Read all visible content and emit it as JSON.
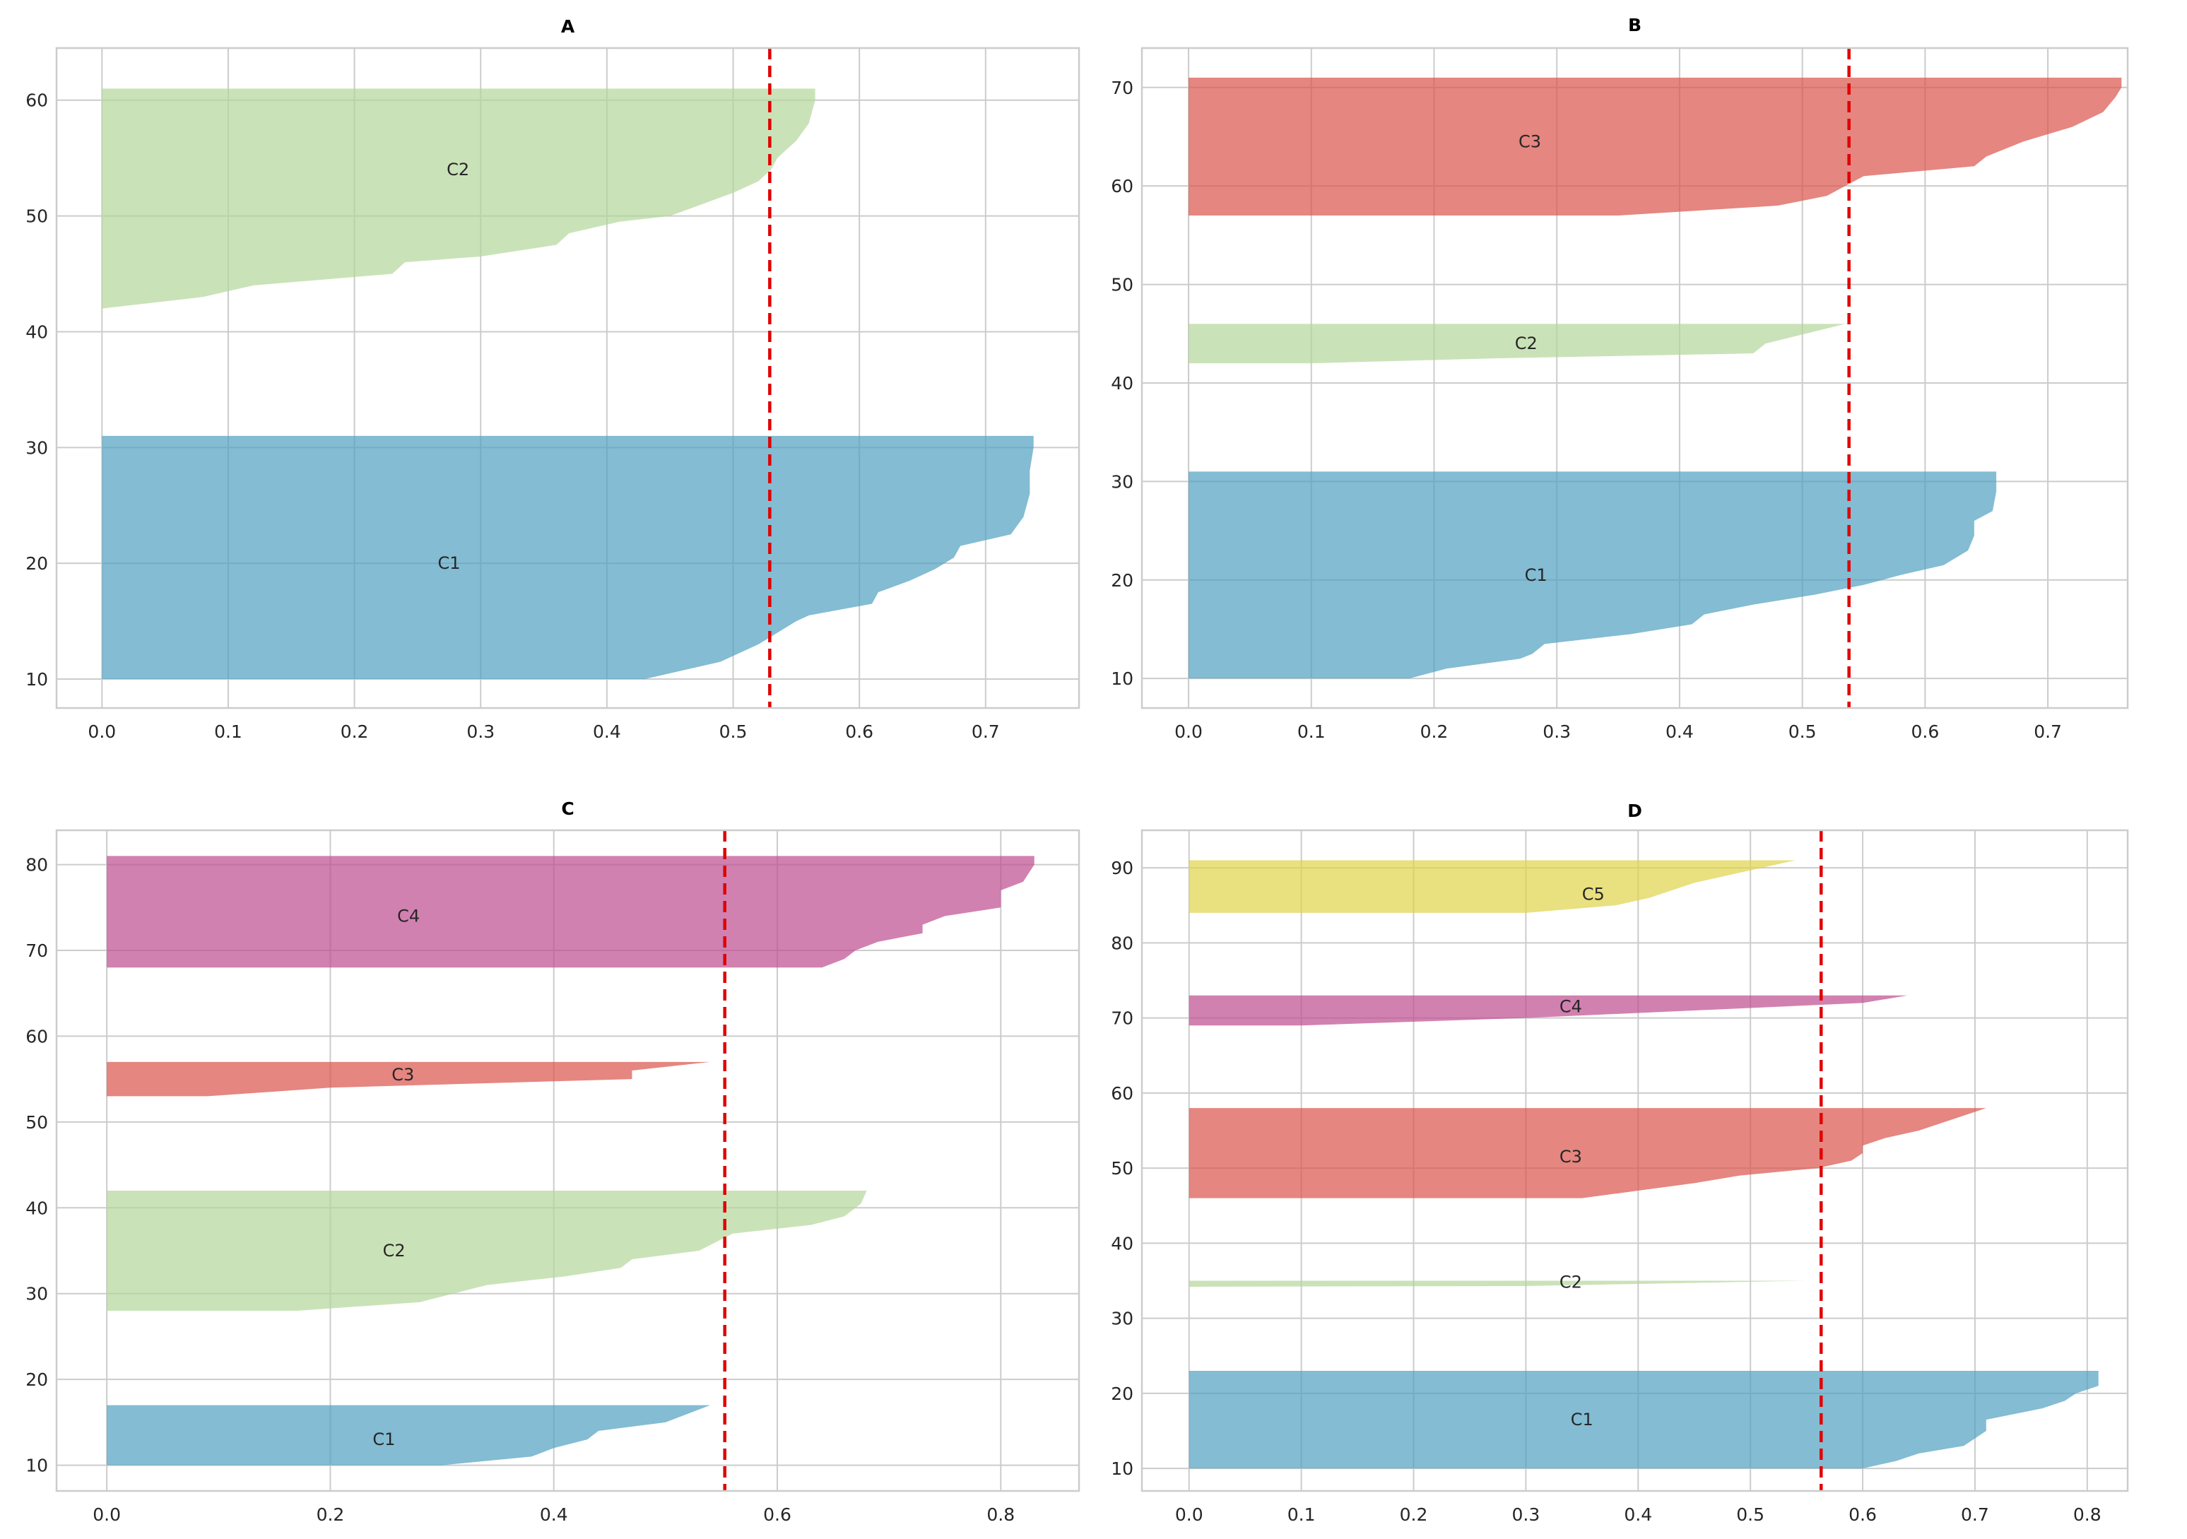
{
  "colors": {
    "C1": "#4e9fc1",
    "C2": "#b4d69a",
    "C3": "#da524a",
    "C4": "#bd4c8e",
    "C5": "#dfd34a",
    "average_line": "#e00000",
    "grid": "#cccccc"
  },
  "chart_data": [
    {
      "id": "A",
      "type": "area",
      "title": "A",
      "xlabel": "",
      "ylabel": "",
      "xlim": [
        -0.036,
        0.774
      ],
      "ylim": [
        7.5,
        64.5
      ],
      "xticks": [
        0.0,
        0.1,
        0.2,
        0.3,
        0.4,
        0.5,
        0.6,
        0.7
      ],
      "xtick_labels": [
        "0.0",
        "0.1",
        "0.2",
        "0.3",
        "0.4",
        "0.5",
        "0.6",
        "0.7"
      ],
      "yticks": [
        10,
        20,
        30,
        40,
        50,
        60
      ],
      "ytick_labels": [
        "10",
        "20",
        "30",
        "40",
        "50",
        "60"
      ],
      "grid": true,
      "average_silhouette": 0.529,
      "clusters": [
        {
          "name": "C1",
          "label": "C1",
          "label_pos": [
            0.275,
            20
          ],
          "profile": [
            [
              0.43,
              10
            ],
            [
              0.49,
              11.5
            ],
            [
              0.52,
              13
            ],
            [
              0.535,
              14
            ],
            [
              0.55,
              15
            ],
            [
              0.56,
              15.5
            ],
            [
              0.61,
              16.5
            ],
            [
              0.615,
              17.5
            ],
            [
              0.64,
              18.5
            ],
            [
              0.66,
              19.5
            ],
            [
              0.675,
              20.5
            ],
            [
              0.68,
              21.5
            ],
            [
              0.72,
              22.5
            ],
            [
              0.73,
              24
            ],
            [
              0.735,
              26
            ],
            [
              0.735,
              28
            ],
            [
              0.738,
              30
            ],
            [
              0.738,
              31
            ]
          ]
        },
        {
          "name": "C2",
          "label": "C2",
          "label_pos": [
            0.282,
            54
          ],
          "profile": [
            [
              0.0,
              42
            ],
            [
              0.08,
              43
            ],
            [
              0.12,
              44
            ],
            [
              0.23,
              45
            ],
            [
              0.24,
              46
            ],
            [
              0.3,
              46.5
            ],
            [
              0.36,
              47.5
            ],
            [
              0.37,
              48.5
            ],
            [
              0.41,
              49.5
            ],
            [
              0.45,
              50
            ],
            [
              0.475,
              51
            ],
            [
              0.5,
              52
            ],
            [
              0.52,
              53
            ],
            [
              0.53,
              54
            ],
            [
              0.535,
              55
            ],
            [
              0.55,
              56.5
            ],
            [
              0.56,
              58
            ],
            [
              0.565,
              60
            ],
            [
              0.565,
              61
            ]
          ]
        }
      ]
    },
    {
      "id": "B",
      "type": "area",
      "title": "B",
      "xlabel": "",
      "ylabel": "",
      "xlim": [
        -0.038,
        0.765
      ],
      "ylim": [
        7.0,
        74.0
      ],
      "xticks": [
        0.0,
        0.1,
        0.2,
        0.3,
        0.4,
        0.5,
        0.6,
        0.7
      ],
      "xtick_labels": [
        "0.0",
        "0.1",
        "0.2",
        "0.3",
        "0.4",
        "0.5",
        "0.6",
        "0.7"
      ],
      "yticks": [
        10,
        20,
        30,
        40,
        50,
        60,
        70
      ],
      "ytick_labels": [
        "10",
        "20",
        "30",
        "40",
        "50",
        "60",
        "70"
      ],
      "grid": true,
      "average_silhouette": 0.538,
      "clusters": [
        {
          "name": "C1",
          "label": "C1",
          "label_pos": [
            0.283,
            20.5
          ],
          "profile": [
            [
              0.18,
              10
            ],
            [
              0.21,
              11
            ],
            [
              0.27,
              12
            ],
            [
              0.28,
              12.5
            ],
            [
              0.29,
              13.5
            ],
            [
              0.36,
              14.5
            ],
            [
              0.41,
              15.5
            ],
            [
              0.42,
              16.5
            ],
            [
              0.46,
              17.5
            ],
            [
              0.51,
              18.5
            ],
            [
              0.55,
              19.5
            ],
            [
              0.58,
              20.5
            ],
            [
              0.615,
              21.5
            ],
            [
              0.635,
              23
            ],
            [
              0.64,
              24.5
            ],
            [
              0.64,
              26
            ],
            [
              0.655,
              27
            ],
            [
              0.658,
              29
            ],
            [
              0.658,
              31
            ]
          ]
        },
        {
          "name": "C2",
          "label": "C2",
          "label_pos": [
            0.275,
            44
          ],
          "profile": [
            [
              0.0,
              42
            ],
            [
              0.1,
              42
            ],
            [
              0.25,
              42.5
            ],
            [
              0.46,
              43
            ],
            [
              0.47,
              44
            ],
            [
              0.535,
              46
            ]
          ]
        },
        {
          "name": "C3",
          "label": "C3",
          "label_pos": [
            0.278,
            64.5
          ],
          "profile": [
            [
              0.0,
              57
            ],
            [
              0.35,
              57
            ],
            [
              0.48,
              58
            ],
            [
              0.52,
              59
            ],
            [
              0.535,
              60
            ],
            [
              0.55,
              61
            ],
            [
              0.64,
              62
            ],
            [
              0.65,
              63
            ],
            [
              0.68,
              64.5
            ],
            [
              0.72,
              66
            ],
            [
              0.745,
              67.5
            ],
            [
              0.755,
              69
            ],
            [
              0.76,
              70
            ],
            [
              0.76,
              71
            ]
          ]
        }
      ]
    },
    {
      "id": "C",
      "type": "area",
      "title": "C",
      "xlabel": "",
      "ylabel": "",
      "xlim": [
        -0.045,
        0.87
      ],
      "ylim": [
        7.0,
        84.0
      ],
      "xticks": [
        0.0,
        0.2,
        0.4,
        0.6,
        0.8
      ],
      "xtick_labels": [
        "0.0",
        "0.2",
        "0.4",
        "0.6",
        "0.8"
      ],
      "yticks": [
        10,
        20,
        30,
        40,
        50,
        60,
        70,
        80
      ],
      "ytick_labels": [
        "10",
        "20",
        "30",
        "40",
        "50",
        "60",
        "70",
        "80"
      ],
      "grid": true,
      "average_silhouette": 0.553,
      "clusters": [
        {
          "name": "C1",
          "label": "C1",
          "label_pos": [
            0.248,
            13
          ],
          "profile": [
            [
              0.3,
              10
            ],
            [
              0.38,
              11
            ],
            [
              0.4,
              12
            ],
            [
              0.43,
              13
            ],
            [
              0.44,
              14
            ],
            [
              0.5,
              15
            ],
            [
              0.54,
              17
            ]
          ]
        },
        {
          "name": "C2",
          "label": "C2",
          "label_pos": [
            0.257,
            35
          ],
          "profile": [
            [
              0.0,
              28
            ],
            [
              0.17,
              28
            ],
            [
              0.28,
              29
            ],
            [
              0.34,
              31
            ],
            [
              0.41,
              32
            ],
            [
              0.46,
              33
            ],
            [
              0.47,
              34
            ],
            [
              0.53,
              35
            ],
            [
              0.545,
              36
            ],
            [
              0.56,
              37
            ],
            [
              0.63,
              38
            ],
            [
              0.66,
              39
            ],
            [
              0.675,
              40.5
            ],
            [
              0.68,
              42
            ]
          ]
        },
        {
          "name": "C3",
          "label": "C3",
          "label_pos": [
            0.265,
            55.5
          ],
          "profile": [
            [
              0.0,
              53
            ],
            [
              0.09,
              53
            ],
            [
              0.2,
              54
            ],
            [
              0.47,
              55
            ],
            [
              0.47,
              56
            ],
            [
              0.54,
              57
            ]
          ]
        },
        {
          "name": "C4",
          "label": "C4",
          "label_pos": [
            0.27,
            74
          ],
          "profile": [
            [
              0.0,
              68
            ],
            [
              0.64,
              68
            ],
            [
              0.66,
              69
            ],
            [
              0.67,
              70
            ],
            [
              0.69,
              71
            ],
            [
              0.73,
              72
            ],
            [
              0.73,
              73
            ],
            [
              0.75,
              74
            ],
            [
              0.8,
              75
            ],
            [
              0.8,
              77
            ],
            [
              0.82,
              78
            ],
            [
              0.83,
              80
            ],
            [
              0.83,
              81
            ]
          ]
        }
      ]
    },
    {
      "id": "D",
      "type": "area",
      "title": "D",
      "xlabel": "",
      "ylabel": "",
      "xlim": [
        -0.042,
        0.836
      ],
      "ylim": [
        7.0,
        95.0
      ],
      "xticks": [
        0.0,
        0.1,
        0.2,
        0.3,
        0.4,
        0.5,
        0.6,
        0.7,
        0.8
      ],
      "xtick_labels": [
        "0.0",
        "0.1",
        "0.2",
        "0.3",
        "0.4",
        "0.5",
        "0.6",
        "0.7",
        "0.8"
      ],
      "yticks": [
        10,
        20,
        30,
        40,
        50,
        60,
        70,
        80,
        90
      ],
      "ytick_labels": [
        "10",
        "20",
        "30",
        "40",
        "50",
        "60",
        "70",
        "80",
        "90"
      ],
      "grid": true,
      "average_silhouette": 0.563,
      "clusters": [
        {
          "name": "C1",
          "label": "C1",
          "label_pos": [
            0.35,
            16.5
          ],
          "profile": [
            [
              0.6,
              10
            ],
            [
              0.63,
              11
            ],
            [
              0.65,
              12
            ],
            [
              0.69,
              13
            ],
            [
              0.7,
              14
            ],
            [
              0.71,
              15
            ],
            [
              0.71,
              16.5
            ],
            [
              0.76,
              18
            ],
            [
              0.78,
              19
            ],
            [
              0.79,
              20
            ],
            [
              0.81,
              21
            ],
            [
              0.81,
              23
            ]
          ]
        },
        {
          "name": "C2",
          "label": "C2",
          "label_pos": [
            0.34,
            34.8
          ],
          "profile": [
            [
              0.0,
              34.2
            ],
            [
              0.3,
              34.3
            ],
            [
              0.55,
              35
            ]
          ]
        },
        {
          "name": "C3",
          "label": "C3",
          "label_pos": [
            0.34,
            51.5
          ],
          "profile": [
            [
              0.0,
              46
            ],
            [
              0.35,
              46
            ],
            [
              0.4,
              47
            ],
            [
              0.45,
              48
            ],
            [
              0.49,
              49
            ],
            [
              0.56,
              50
            ],
            [
              0.59,
              51
            ],
            [
              0.6,
              52
            ],
            [
              0.6,
              53
            ],
            [
              0.62,
              54
            ],
            [
              0.65,
              55
            ],
            [
              0.68,
              56.5
            ],
            [
              0.7,
              57.5
            ],
            [
              0.71,
              58
            ]
          ]
        },
        {
          "name": "C4",
          "label": "C4",
          "label_pos": [
            0.34,
            71.5
          ],
          "profile": [
            [
              0.0,
              69
            ],
            [
              0.1,
              69
            ],
            [
              0.3,
              70
            ],
            [
              0.45,
              71
            ],
            [
              0.6,
              72
            ],
            [
              0.64,
              73
            ]
          ]
        },
        {
          "name": "C5",
          "label": "C5",
          "label_pos": [
            0.36,
            86.5
          ],
          "profile": [
            [
              0.0,
              84
            ],
            [
              0.3,
              84
            ],
            [
              0.38,
              85
            ],
            [
              0.41,
              86
            ],
            [
              0.43,
              87
            ],
            [
              0.45,
              88
            ],
            [
              0.48,
              89
            ],
            [
              0.51,
              90
            ],
            [
              0.54,
              91
            ]
          ]
        }
      ]
    }
  ]
}
